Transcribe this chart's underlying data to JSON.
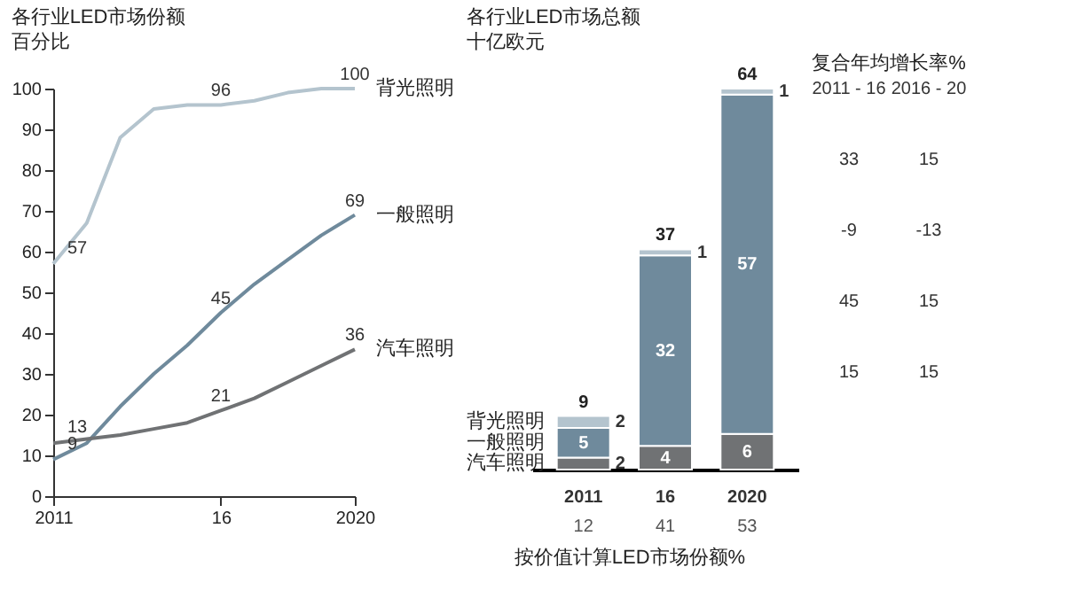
{
  "chart_data": [
    {
      "type": "line",
      "title": "各行业LED市场份额",
      "subtitle": "百分比",
      "x": [
        2011,
        2012,
        2013,
        2014,
        2015,
        2016,
        2017,
        2018,
        2019,
        2020
      ],
      "xlim": [
        2011,
        2020
      ],
      "xticks": [
        2011,
        {
          "value": 2016,
          "label": "16"
        },
        2020
      ],
      "ylim": [
        0,
        100
      ],
      "yticks": [
        0,
        10,
        20,
        30,
        40,
        50,
        60,
        70,
        80,
        90,
        100
      ],
      "grid": false,
      "legend": false,
      "series": [
        {
          "name": "背光照明",
          "color": "#b4c4ce",
          "values": [
            57,
            67,
            88,
            95,
            96,
            96,
            97,
            99,
            100,
            100
          ],
          "value_labels": [
            "57",
            null,
            null,
            null,
            null,
            "96",
            null,
            null,
            null,
            "100"
          ]
        },
        {
          "name": "一般照明",
          "color": "#6f8a9c",
          "values": [
            9,
            13,
            22,
            30,
            37,
            45,
            52,
            58,
            64,
            69
          ],
          "value_labels": [
            "9",
            null,
            null,
            null,
            null,
            "45",
            null,
            null,
            null,
            "69"
          ]
        },
        {
          "name": "汽车照明",
          "color": "#707274",
          "values": [
            13,
            14,
            15,
            16.5,
            18,
            21,
            24,
            28,
            32,
            36
          ],
          "value_labels": [
            "13",
            null,
            null,
            null,
            null,
            "21",
            null,
            null,
            null,
            "36"
          ]
        }
      ]
    },
    {
      "type": "bar",
      "stacked": true,
      "title": "各行业LED市场总额",
      "subtitle": "十亿欧元",
      "categories": [
        "2011",
        "16",
        "2020"
      ],
      "data_labels": true,
      "tick_labels": "x",
      "totals": [
        "9",
        "37",
        "64"
      ],
      "annotations": [
        "12",
        "41",
        "53",
        "按价值计算LED市场份额%"
      ],
      "series": [
        {
          "name": "汽车照明",
          "color": "#7b7b7b",
          "values": [
            2,
            4,
            6
          ]
        },
        {
          "name": "一般照明",
          "color": "#7d98aa",
          "values": [
            5,
            32,
            57
          ]
        },
        {
          "name": "背光照明",
          "color": "#b9cad4",
          "values": [
            2,
            1,
            1
          ]
        }
      ]
    },
    {
      "type": "other",
      "title": "复合年均增长率%",
      "categories": [
        "2011 - 16",
        "2016 - 20"
      ],
      "annotations": [
        "33",
        "15",
        "-9",
        "-13",
        "45",
        "15",
        "15",
        "15"
      ]
    }
  ]
}
